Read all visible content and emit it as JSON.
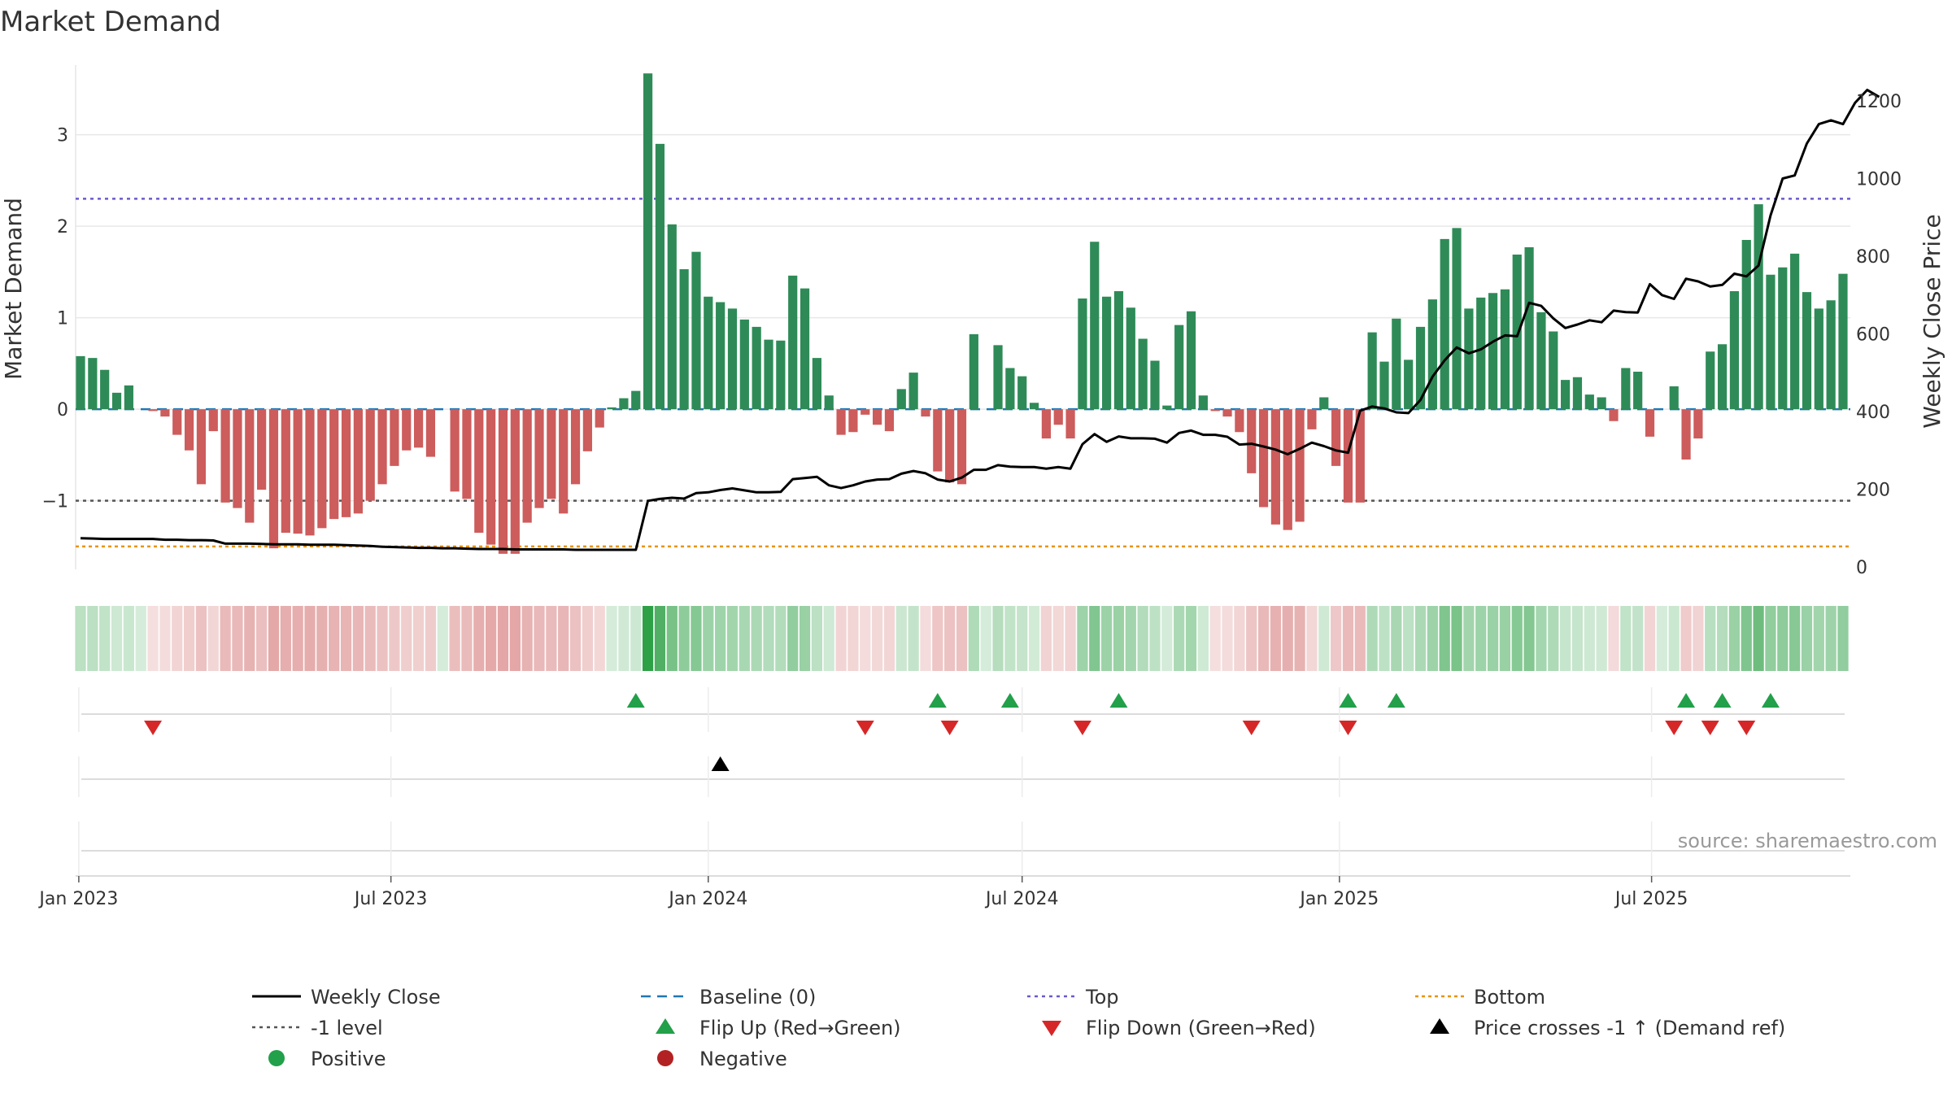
{
  "chart_data": {
    "type": "bar",
    "title": "Market Demand",
    "ylabel_left": "Market Demand",
    "ylabel_right": "Weekly Close Price",
    "ylim_left": [
      -1.75,
      3.85
    ],
    "ylim_right": [
      0,
      1250
    ],
    "yticks_left": [
      {
        "v": 3,
        "label": "3"
      },
      {
        "v": 2,
        "label": "2"
      },
      {
        "v": 1,
        "label": "1"
      },
      {
        "v": 0,
        "label": "0"
      },
      {
        "v": -1,
        "label": "−1"
      }
    ],
    "yticks_right": [
      {
        "v": 0,
        "label": "0"
      },
      {
        "v": 200,
        "label": "200"
      },
      {
        "v": 400,
        "label": "400"
      },
      {
        "v": 600,
        "label": "600"
      },
      {
        "v": 800,
        "label": "800"
      },
      {
        "v": 1000,
        "label": "1000"
      },
      {
        "v": 1200,
        "label": "1200"
      }
    ],
    "x_start": "2023-01-02",
    "bar_interval_days": 7,
    "xticks": [
      {
        "date": "2023-01-01",
        "label": "Jan 2023"
      },
      {
        "date": "2023-07-01",
        "label": "Jul 2023"
      },
      {
        "date": "2024-01-01",
        "label": "Jan 2024"
      },
      {
        "date": "2024-07-01",
        "label": "Jul 2024"
      },
      {
        "date": "2025-01-01",
        "label": "Jan 2025"
      },
      {
        "date": "2025-07-01",
        "label": "Jul 2025"
      }
    ],
    "reference_lines": {
      "baseline": 0,
      "top": 2.3,
      "minus_one": -1,
      "bottom": -1.5
    },
    "demand": [
      0.58,
      0.56,
      0.43,
      0.18,
      0.26,
      0,
      -0.02,
      -0.08,
      -0.28,
      -0.45,
      -0.82,
      -0.24,
      -1.02,
      -1.08,
      -1.24,
      -0.88,
      -1.52,
      -1.35,
      -1.36,
      -1.38,
      -1.3,
      -1.2,
      -1.18,
      -1.14,
      -1.0,
      -0.82,
      -0.62,
      -0.45,
      -0.42,
      -0.52,
      0,
      -0.9,
      -0.98,
      -1.35,
      -1.48,
      -1.58,
      -1.58,
      -1.24,
      -1.08,
      -0.98,
      -1.14,
      -0.82,
      -0.46,
      -0.2,
      0.02,
      0.12,
      0.2,
      3.67,
      2.9,
      2.02,
      1.53,
      1.72,
      1.23,
      1.17,
      1.1,
      0.98,
      0.9,
      0.76,
      0.75,
      1.46,
      1.32,
      0.56,
      0.15,
      -0.28,
      -0.25,
      -0.06,
      -0.17,
      -0.24,
      0.22,
      0.4,
      -0.08,
      -0.68,
      -0.8,
      -0.82,
      0.82,
      0,
      0.7,
      0.45,
      0.36,
      0.07,
      -0.32,
      -0.17,
      -0.32,
      1.21,
      1.83,
      1.23,
      1.29,
      1.11,
      0.77,
      0.53,
      0.04,
      0.92,
      1.07,
      0.15,
      -0.02,
      -0.08,
      -0.25,
      -0.7,
      -1.07,
      -1.26,
      -1.32,
      -1.23,
      -0.22,
      0.13,
      -0.62,
      -1.02,
      -1.02,
      0.84,
      0.52,
      0.99,
      0.54,
      0.9,
      1.2,
      1.86,
      1.98,
      1.1,
      1.22,
      1.27,
      1.31,
      1.69,
      1.77,
      1.06,
      0.85,
      0.32,
      0.35,
      0.16,
      0.13,
      -0.13,
      0.45,
      0.41,
      -0.3,
      0,
      0.25,
      -0.55,
      -0.32,
      0.63,
      0.71,
      1.29,
      1.85,
      2.24,
      1.47,
      1.55,
      1.7,
      1.28,
      1.1,
      1.19,
      1.48
    ],
    "weekly_close": [
      74,
      73,
      72,
      72,
      72,
      72,
      72,
      70,
      70,
      69,
      69,
      68,
      60,
      60,
      60,
      59,
      58,
      58,
      58,
      57,
      57,
      57,
      56,
      55,
      54,
      52,
      51,
      50,
      49,
      49,
      48,
      48,
      47,
      46,
      46,
      46,
      45,
      45,
      45,
      45,
      45,
      44,
      44,
      44,
      44,
      44,
      44,
      170,
      175,
      178,
      176,
      190,
      192,
      198,
      202,
      197,
      192,
      192,
      193,
      226,
      229,
      232,
      210,
      203,
      210,
      220,
      225,
      226,
      240,
      247,
      241,
      225,
      220,
      230,
      250,
      250,
      262,
      258,
      257,
      257,
      253,
      257,
      253,
      316,
      342,
      322,
      336,
      331,
      331,
      330,
      320,
      345,
      351,
      340,
      340,
      335,
      315,
      317,
      310,
      302,
      290,
      304,
      320,
      311,
      300,
      294,
      402,
      413,
      408,
      398,
      396,
      430,
      490,
      532,
      565,
      550,
      560,
      580,
      596,
      594,
      680,
      672,
      640,
      615,
      624,
      635,
      630,
      660,
      656,
      655,
      728,
      700,
      690,
      742,
      735,
      722,
      726,
      755,
      748,
      776,
      905,
      1000,
      1008,
      1090,
      1140,
      1150,
      1140,
      1195,
      1228,
      1210
    ],
    "flip_up_weeks": [
      46,
      71,
      77,
      86,
      105,
      109,
      133,
      136,
      140
    ],
    "flip_down_weeks": [
      6,
      65,
      72,
      83,
      97,
      105,
      132,
      135,
      138
    ],
    "price_cross_weeks": [
      53
    ],
    "source": "source: sharemaestro.com",
    "colors": {
      "positive": "#2e8b57",
      "negative": "#cd5c5c",
      "close": "#000000",
      "baseline": "#1f77b4",
      "top": "#6a5acd",
      "bottom": "#e69500",
      "minus_one": "#555555",
      "flip_up": "#22a04a",
      "flip_down": "#d62728",
      "cross": "#000000",
      "legend_positive": "#22a04a",
      "legend_negative": "#b22222"
    },
    "legend": [
      {
        "key": "close",
        "label": "Weekly Close"
      },
      {
        "key": "baseline",
        "label": "Baseline (0)"
      },
      {
        "key": "top",
        "label": "Top"
      },
      {
        "key": "bottom",
        "label": "Bottom"
      },
      {
        "key": "minus_one",
        "label": "-1 level"
      },
      {
        "key": "flip_up",
        "label": "Flip Up (Red→Green)"
      },
      {
        "key": "flip_down",
        "label": "Flip Down (Green→Red)"
      },
      {
        "key": "cross",
        "label": "Price crosses -1 ↑ (Demand ref)"
      },
      {
        "key": "positive",
        "label": "Positive"
      },
      {
        "key": "negative",
        "label": "Negative"
      }
    ]
  }
}
